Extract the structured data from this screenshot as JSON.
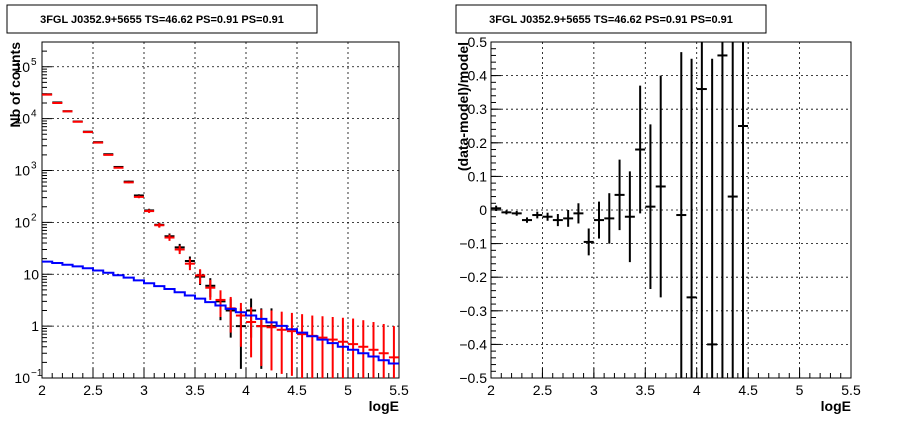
{
  "chart_data": [
    {
      "type": "histogram",
      "title": "3FGL J0352.9+5655 TS=46.62 PS=0.91 PS=0.91",
      "xlabel": "logE",
      "ylabel": "Nb of counts",
      "log_y": true,
      "grid": true,
      "xlim": [
        2,
        5.5
      ],
      "ylim": [
        0.1,
        300000
      ],
      "x_ticks": [
        "2",
        "2.5",
        "3",
        "3.5",
        "4",
        "4.5",
        "5",
        "5.5"
      ],
      "y_ticks": [
        {
          "value": 0.1,
          "label": "10",
          "exp": "−1"
        },
        {
          "value": 1,
          "label": "1",
          "exp": ""
        },
        {
          "value": 10,
          "label": "10",
          "exp": ""
        },
        {
          "value": 100,
          "label": "10",
          "exp": "2"
        },
        {
          "value": 1000,
          "label": "10",
          "exp": "3"
        },
        {
          "value": 10000,
          "label": "10",
          "exp": "4"
        },
        {
          "value": 100000,
          "label": "10",
          "exp": "5"
        }
      ],
      "series": [
        {
          "color": "#000000",
          "style": "errorbar",
          "points": [
            {
              "x": 2.05,
              "y": 29500,
              "lo": 29300,
              "hi": 29700
            },
            {
              "x": 2.15,
              "y": 20500,
              "lo": 20350,
              "hi": 20650
            },
            {
              "x": 2.25,
              "y": 13900,
              "lo": 13780,
              "hi": 14020
            },
            {
              "x": 2.35,
              "y": 8800,
              "lo": 8700,
              "hi": 8900
            },
            {
              "x": 2.45,
              "y": 5600,
              "lo": 5520,
              "hi": 5680
            },
            {
              "x": 2.55,
              "y": 3520,
              "lo": 3460,
              "hi": 3580
            },
            {
              "x": 2.65,
              "y": 2060,
              "lo": 2020,
              "hi": 2100
            },
            {
              "x": 2.75,
              "y": 1170,
              "lo": 1135,
              "hi": 1205
            },
            {
              "x": 2.85,
              "y": 610,
              "lo": 585,
              "hi": 635
            },
            {
              "x": 2.95,
              "y": 330,
              "lo": 312,
              "hi": 348
            },
            {
              "x": 3.05,
              "y": 170,
              "lo": 157,
              "hi": 183
            },
            {
              "x": 3.15,
              "y": 90,
              "lo": 81,
              "hi": 99
            },
            {
              "x": 3.25,
              "y": 54,
              "lo": 47,
              "hi": 61
            },
            {
              "x": 3.35,
              "y": 33,
              "lo": 27.5,
              "hi": 38.5
            },
            {
              "x": 3.45,
              "y": 18,
              "lo": 14,
              "hi": 22
            },
            {
              "x": 3.55,
              "y": 9,
              "lo": 6.2,
              "hi": 12
            },
            {
              "x": 3.65,
              "y": 6,
              "lo": 3.6,
              "hi": 8.4
            },
            {
              "x": 3.75,
              "y": 3,
              "lo": 1.3,
              "hi": 4.7
            },
            {
              "x": 3.85,
              "y": 2,
              "lo": 0.6,
              "hi": 3.4
            },
            {
              "x": 3.95,
              "y": 1,
              "lo": 0.15,
              "hi": 2.2
            },
            {
              "x": 4.05,
              "y": 2,
              "lo": 0.6,
              "hi": 3.4
            },
            {
              "x": 4.15,
              "y": 1,
              "lo": 0.15,
              "hi": 2.2
            },
            {
              "x": 4.25,
              "y": 1,
              "lo": 0.15,
              "hi": 2.2
            }
          ]
        },
        {
          "color": "#ff0000",
          "style": "errorbar",
          "points": [
            {
              "x": 2.05,
              "y": 29000,
              "lo": 28800,
              "hi": 29200
            },
            {
              "x": 2.15,
              "y": 20000,
              "lo": 19850,
              "hi": 20150
            },
            {
              "x": 2.25,
              "y": 13800,
              "lo": 13680,
              "hi": 13920
            },
            {
              "x": 2.35,
              "y": 8700,
              "lo": 8600,
              "hi": 8800
            },
            {
              "x": 2.45,
              "y": 5500,
              "lo": 5420,
              "hi": 5580
            },
            {
              "x": 2.55,
              "y": 3450,
              "lo": 3390,
              "hi": 3510
            },
            {
              "x": 2.65,
              "y": 2000,
              "lo": 1960,
              "hi": 2040
            },
            {
              "x": 2.75,
              "y": 1130,
              "lo": 1095,
              "hi": 1165
            },
            {
              "x": 2.85,
              "y": 590,
              "lo": 565,
              "hi": 615
            },
            {
              "x": 2.95,
              "y": 310,
              "lo": 292,
              "hi": 328
            },
            {
              "x": 3.05,
              "y": 165,
              "lo": 152,
              "hi": 178
            },
            {
              "x": 3.15,
              "y": 88,
              "lo": 79,
              "hi": 97
            },
            {
              "x": 3.25,
              "y": 51,
              "lo": 44,
              "hi": 58
            },
            {
              "x": 3.35,
              "y": 30,
              "lo": 24.5,
              "hi": 35.5
            },
            {
              "x": 3.45,
              "y": 16,
              "lo": 12,
              "hi": 20
            },
            {
              "x": 3.55,
              "y": 9.5,
              "lo": 6.5,
              "hi": 12.5
            },
            {
              "x": 3.65,
              "y": 5.5,
              "lo": 3.2,
              "hi": 7.8
            },
            {
              "x": 3.75,
              "y": 3.2,
              "lo": 1.5,
              "hi": 4.9
            },
            {
              "x": 3.85,
              "y": 2.2,
              "lo": 0.75,
              "hi": 3.65
            },
            {
              "x": 3.95,
              "y": 1.6,
              "lo": 0.4,
              "hi": 2.8
            },
            {
              "x": 4.05,
              "y": 1.2,
              "lo": 0.25,
              "hi": 2.3
            },
            {
              "x": 4.15,
              "y": 1.0,
              "lo": 0.17,
              "hi": 2.1
            },
            {
              "x": 4.25,
              "y": 0.95,
              "lo": 0.14,
              "hi": 2.0
            },
            {
              "x": 4.35,
              "y": 0.85,
              "lo": 0.12,
              "hi": 1.9
            },
            {
              "x": 4.45,
              "y": 0.8,
              "lo": 0.11,
              "hi": 1.8
            },
            {
              "x": 4.55,
              "y": 0.7,
              "lo": 0.1,
              "hi": 1.7
            },
            {
              "x": 4.65,
              "y": 0.65,
              "lo": 0.1,
              "hi": 1.6
            },
            {
              "x": 4.75,
              "y": 0.6,
              "lo": 0.1,
              "hi": 1.55
            },
            {
              "x": 4.85,
              "y": 0.55,
              "lo": 0.1,
              "hi": 1.5
            },
            {
              "x": 4.95,
              "y": 0.5,
              "lo": 0.1,
              "hi": 1.45
            },
            {
              "x": 5.05,
              "y": 0.45,
              "lo": 0.1,
              "hi": 1.4
            },
            {
              "x": 5.15,
              "y": 0.4,
              "lo": 0.1,
              "hi": 1.3
            },
            {
              "x": 5.25,
              "y": 0.35,
              "lo": 0.1,
              "hi": 1.2
            },
            {
              "x": 5.35,
              "y": 0.3,
              "lo": 0.1,
              "hi": 1.1
            },
            {
              "x": 5.45,
              "y": 0.25,
              "lo": 0.1,
              "hi": 1.0
            }
          ]
        },
        {
          "color": "#0000ff",
          "style": "step",
          "bin_width": 0.1,
          "points": [
            {
              "x": 2.05,
              "y": 17.5
            },
            {
              "x": 2.15,
              "y": 16.5
            },
            {
              "x": 2.25,
              "y": 15.3
            },
            {
              "x": 2.35,
              "y": 14.2
            },
            {
              "x": 2.45,
              "y": 13.0
            },
            {
              "x": 2.55,
              "y": 11.8
            },
            {
              "x": 2.65,
              "y": 10.7
            },
            {
              "x": 2.75,
              "y": 9.6
            },
            {
              "x": 2.85,
              "y": 8.6
            },
            {
              "x": 2.95,
              "y": 7.6
            },
            {
              "x": 3.05,
              "y": 6.7
            },
            {
              "x": 3.15,
              "y": 5.9
            },
            {
              "x": 3.25,
              "y": 5.2
            },
            {
              "x": 3.35,
              "y": 4.5
            },
            {
              "x": 3.45,
              "y": 3.9
            },
            {
              "x": 3.55,
              "y": 3.4
            },
            {
              "x": 3.65,
              "y": 2.9
            },
            {
              "x": 3.75,
              "y": 2.5
            },
            {
              "x": 3.85,
              "y": 2.15
            },
            {
              "x": 3.95,
              "y": 1.85
            },
            {
              "x": 4.05,
              "y": 1.6
            },
            {
              "x": 4.15,
              "y": 1.38
            },
            {
              "x": 4.25,
              "y": 1.18
            },
            {
              "x": 4.35,
              "y": 1.01
            },
            {
              "x": 4.45,
              "y": 0.87
            },
            {
              "x": 4.55,
              "y": 0.75
            },
            {
              "x": 4.65,
              "y": 0.64
            },
            {
              "x": 4.75,
              "y": 0.55
            },
            {
              "x": 4.85,
              "y": 0.47
            },
            {
              "x": 4.95,
              "y": 0.4
            },
            {
              "x": 5.05,
              "y": 0.35
            },
            {
              "x": 5.15,
              "y": 0.3
            },
            {
              "x": 5.25,
              "y": 0.26
            },
            {
              "x": 5.35,
              "y": 0.22
            },
            {
              "x": 5.45,
              "y": 0.19
            }
          ]
        }
      ]
    },
    {
      "type": "errorbar",
      "title": "3FGL J0352.9+5655 TS=46.62 PS=0.91 PS=0.91",
      "xlabel": "logE",
      "ylabel": "(data-model)/model",
      "log_y": false,
      "grid": true,
      "xlim": [
        2,
        5.5
      ],
      "ylim": [
        -0.5,
        0.5
      ],
      "x_ticks": [
        "2",
        "2.5",
        "3",
        "3.5",
        "4",
        "4.5",
        "5",
        "5.5"
      ],
      "y_ticks": [
        "−0.5",
        "−0.4",
        "−0.3",
        "−0.2",
        "−0.1",
        "0",
        "0.1",
        "0.2",
        "0.3",
        "0.4",
        "0.5"
      ],
      "series": [
        {
          "color": "#000000",
          "style": "errorbar",
          "points": [
            {
              "x": 2.05,
              "y": 0.005,
              "lo": -0.003,
              "hi": 0.013
            },
            {
              "x": 2.15,
              "y": -0.007,
              "lo": -0.013,
              "hi": -0.001
            },
            {
              "x": 2.25,
              "y": -0.01,
              "lo": -0.017,
              "hi": -0.003
            },
            {
              "x": 2.35,
              "y": -0.03,
              "lo": -0.038,
              "hi": -0.022
            },
            {
              "x": 2.45,
              "y": -0.015,
              "lo": -0.025,
              "hi": -0.005
            },
            {
              "x": 2.55,
              "y": -0.02,
              "lo": -0.032,
              "hi": -0.008
            },
            {
              "x": 2.65,
              "y": -0.03,
              "lo": -0.048,
              "hi": -0.012
            },
            {
              "x": 2.75,
              "y": -0.025,
              "lo": -0.05,
              "hi": 0.0
            },
            {
              "x": 2.85,
              "y": -0.01,
              "lo": -0.04,
              "hi": 0.02
            },
            {
              "x": 2.95,
              "y": -0.095,
              "lo": -0.135,
              "hi": -0.055
            },
            {
              "x": 3.05,
              "y": -0.03,
              "lo": -0.085,
              "hi": 0.025
            },
            {
              "x": 3.15,
              "y": -0.025,
              "lo": -0.1,
              "hi": 0.05
            },
            {
              "x": 3.25,
              "y": 0.045,
              "lo": -0.06,
              "hi": 0.15
            },
            {
              "x": 3.35,
              "y": -0.02,
              "lo": -0.155,
              "hi": 0.115
            },
            {
              "x": 3.45,
              "y": 0.18,
              "lo": -0.01,
              "hi": 0.37
            },
            {
              "x": 3.55,
              "y": 0.01,
              "lo": -0.235,
              "hi": 0.255
            },
            {
              "x": 3.65,
              "y": 0.07,
              "lo": -0.26,
              "hi": 0.4
            },
            {
              "x": 3.85,
              "y": -0.015,
              "lo": -0.5,
              "hi": 0.47
            },
            {
              "x": 3.95,
              "y": -0.26,
              "lo": -0.5,
              "hi": 0.45
            },
            {
              "x": 4.05,
              "y": 0.36,
              "lo": -0.5,
              "hi": 0.5
            },
            {
              "x": 4.15,
              "y": -0.4,
              "lo": -0.5,
              "hi": 0.45
            },
            {
              "x": 4.25,
              "y": 0.46,
              "lo": -0.5,
              "hi": 0.5
            },
            {
              "x": 4.35,
              "y": 0.04,
              "lo": -0.5,
              "hi": 0.5
            },
            {
              "x": 4.45,
              "y": 0.25,
              "lo": -0.5,
              "hi": 0.5
            }
          ]
        }
      ]
    }
  ]
}
